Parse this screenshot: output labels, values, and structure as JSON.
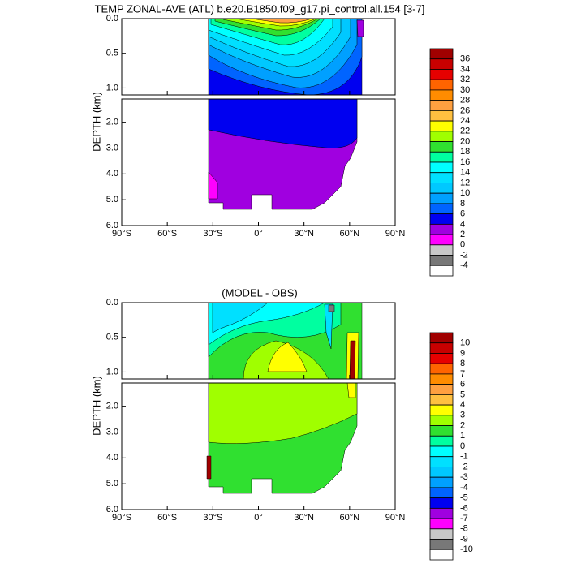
{
  "chart_data": [
    {
      "type": "contour",
      "title": "TEMP ZONAL-AVE (ATL) b.e20.B1850.f09_g17.pi_control.all.154 [3-7]",
      "ylabel": "DEPTH (km)",
      "xlim": [
        -90,
        90
      ],
      "xticks": [
        {
          "value": -90,
          "label": "90°S"
        },
        {
          "value": -60,
          "label": "60°S"
        },
        {
          "value": -30,
          "label": "30°S"
        },
        {
          "value": 0,
          "label": "0°"
        },
        {
          "value": 30,
          "label": "30°N"
        },
        {
          "value": 60,
          "label": "60°N"
        },
        {
          "value": 90,
          "label": "90°N"
        }
      ],
      "panels": [
        {
          "ylim": [
            0,
            1.1
          ],
          "yticks": [
            {
              "value": 0,
              "label": "0.0"
            },
            0.5,
            {
              "value": 1,
              "label": "1.0"
            }
          ]
        },
        {
          "ylim": [
            1.1,
            6
          ],
          "yticks": [
            {
              "value": 2,
              "label": "2.0"
            },
            {
              "value": 3,
              "label": "3.0"
            },
            {
              "value": 4,
              "label": "4.0"
            },
            {
              "value": 5,
              "label": "5.0"
            },
            {
              "value": 6,
              "label": "6.0"
            }
          ]
        }
      ],
      "colorbar": {
        "levels": [
          36,
          34,
          32,
          30,
          28,
          26,
          24,
          22,
          20,
          18,
          16,
          14,
          12,
          10,
          8,
          6,
          4,
          2,
          0,
          -2,
          -4
        ],
        "colors": [
          "#a00000",
          "#c80000",
          "#e60000",
          "#ff6400",
          "#ff8c00",
          "#ffa040",
          "#ffc040",
          "#ffff00",
          "#a0ff00",
          "#30e030",
          "#00ffa0",
          "#00ffff",
          "#00e0ff",
          "#00c8ff",
          "#00a0ff",
          "#0064ff",
          "#0000f0",
          "#a000e0",
          "#ff00ff",
          "#c8c8c8",
          "#787878",
          "#ffffff"
        ]
      }
    },
    {
      "type": "contour",
      "title": "(MODEL - OBS)",
      "ylabel": "DEPTH (km)",
      "xlim": [
        -90,
        90
      ],
      "xticks": [
        {
          "value": -90,
          "label": "90°S"
        },
        {
          "value": -60,
          "label": "60°S"
        },
        {
          "value": -30,
          "label": "30°S"
        },
        {
          "value": 0,
          "label": "0°"
        },
        {
          "value": 30,
          "label": "30°N"
        },
        {
          "value": 60,
          "label": "60°N"
        },
        {
          "value": 90,
          "label": "90°N"
        }
      ],
      "panels": [
        {
          "ylim": [
            0,
            1.1
          ],
          "yticks": [
            {
              "value": 0,
              "label": "0.0"
            },
            0.5,
            {
              "value": 1,
              "label": "1.0"
            }
          ]
        },
        {
          "ylim": [
            1.1,
            6
          ],
          "yticks": [
            {
              "value": 2,
              "label": "2.0"
            },
            {
              "value": 3,
              "label": "3.0"
            },
            {
              "value": 4,
              "label": "4.0"
            },
            {
              "value": 5,
              "label": "5.0"
            },
            {
              "value": 6,
              "label": "6.0"
            }
          ]
        }
      ],
      "colorbar": {
        "levels": [
          10,
          9,
          8,
          7,
          6,
          5,
          4,
          3,
          2,
          1,
          0,
          -1,
          -2,
          -3,
          -4,
          -5,
          -6,
          -7,
          -8,
          -9,
          -10
        ],
        "colors": [
          "#a00000",
          "#c80000",
          "#e60000",
          "#ff6400",
          "#ff8c00",
          "#ffa040",
          "#ffc040",
          "#ffff00",
          "#a0ff00",
          "#30e030",
          "#00ffa0",
          "#00ffff",
          "#00e0ff",
          "#00c8ff",
          "#00a0ff",
          "#0064ff",
          "#0000f0",
          "#a000e0",
          "#ff00ff",
          "#c8c8c8",
          "#787878",
          "#ffffff"
        ]
      }
    }
  ]
}
